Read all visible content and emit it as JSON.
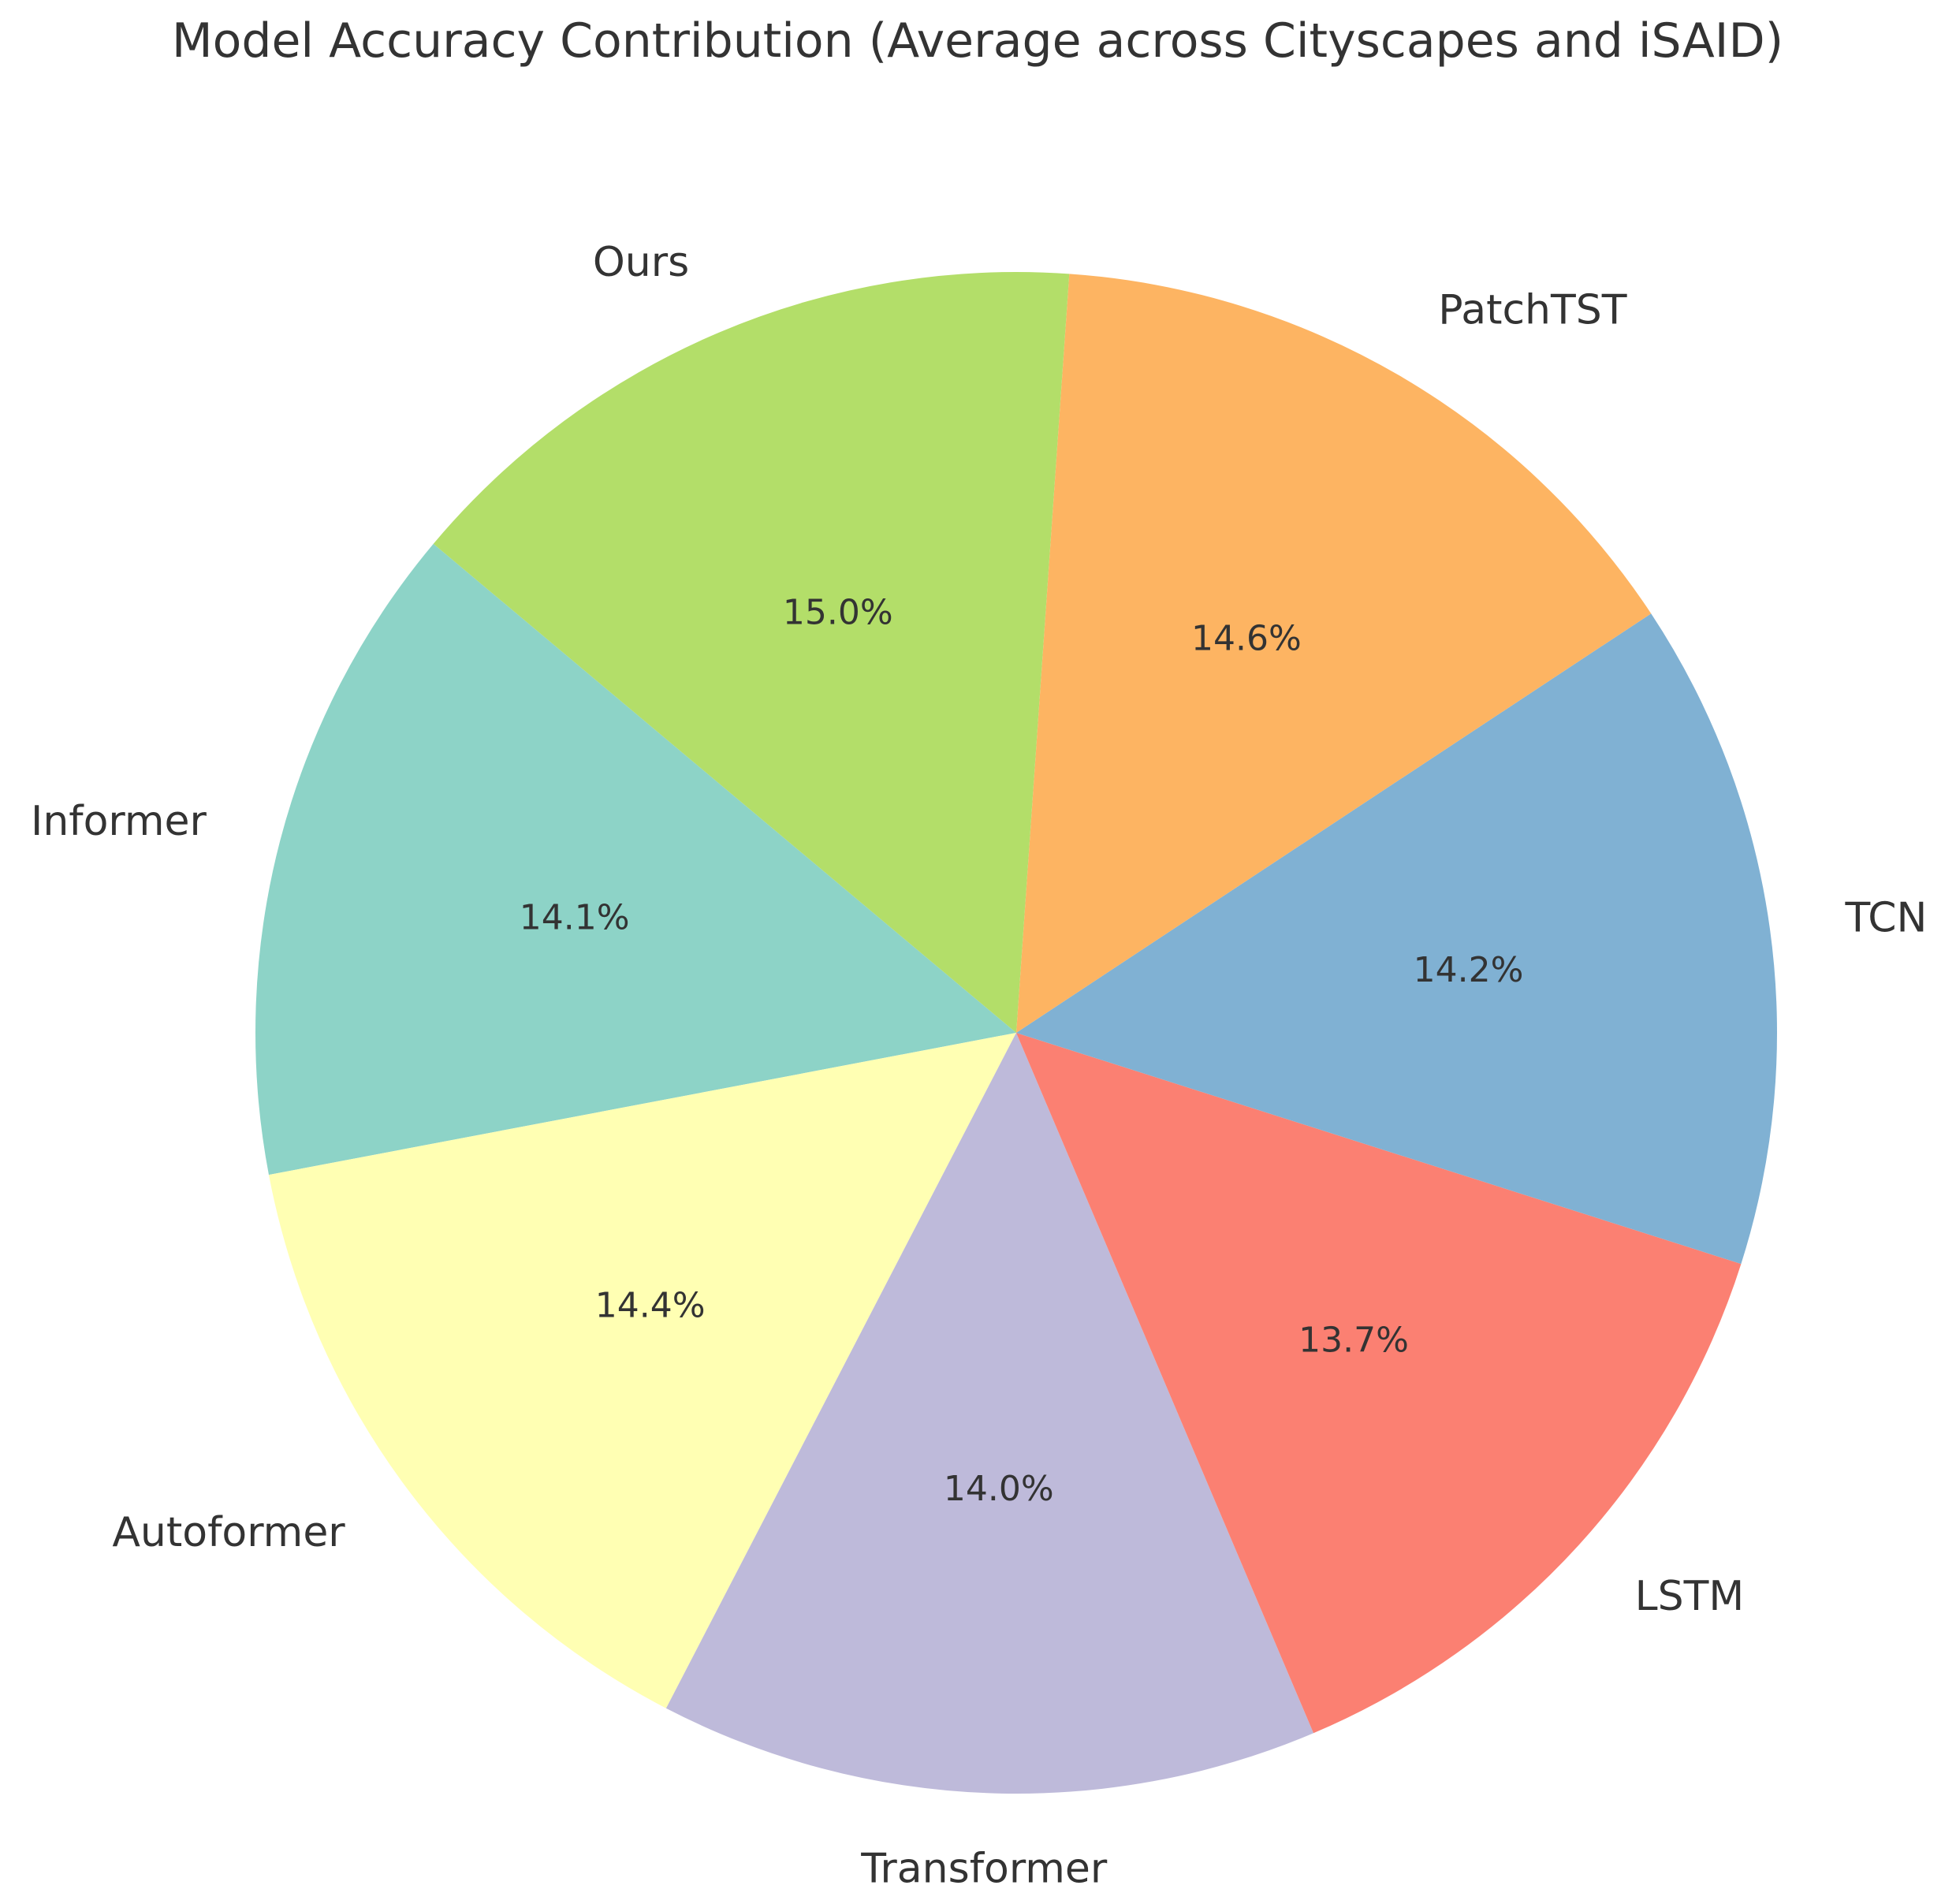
{
  "chart_data": {
    "type": "pie",
    "title": "Model Accuracy Contribution (Average across Cityscapes and iSAID)",
    "slices": [
      {
        "label": "Informer",
        "value": 14.1,
        "pct_text": "14.1%",
        "color": "#8dd3c7"
      },
      {
        "label": "Autoformer",
        "value": 14.4,
        "pct_text": "14.4%",
        "color": "#ffffb3"
      },
      {
        "label": "Transformer",
        "value": 14.0,
        "pct_text": "14.0%",
        "color": "#bebada"
      },
      {
        "label": "LSTM",
        "value": 13.7,
        "pct_text": "13.7%",
        "color": "#fb8072"
      },
      {
        "label": "TCN",
        "value": 14.2,
        "pct_text": "14.2%",
        "color": "#80b1d3"
      },
      {
        "label": "PatchTST",
        "value": 14.6,
        "pct_text": "14.6%",
        "color": "#fdb462"
      },
      {
        "label": "Ours",
        "value": 15.0,
        "pct_text": "15.0%",
        "color": "#b3de69"
      }
    ],
    "start_angle_deg": 140,
    "direction": "counterclockwise",
    "legend": "none"
  }
}
